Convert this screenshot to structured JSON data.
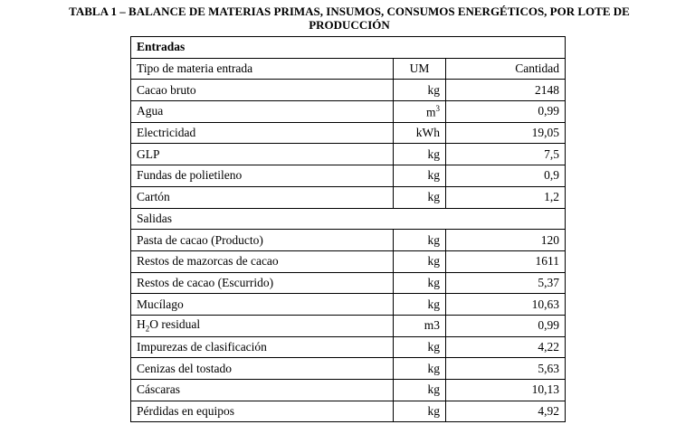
{
  "title": {
    "line1": "TABLA 1 – BALANCE DE MATERIAS PRIMAS, INSUMOS, CONSUMOS ENERGÉTICOS, POR LOTE DE",
    "line2": "PRODUCCIÓN"
  },
  "table": {
    "entradas_label": "Entradas",
    "header": {
      "name": "Tipo de materia entrada",
      "um": "UM",
      "qty": "Cantidad"
    },
    "entradas": [
      {
        "name": "Cacao bruto",
        "um": "kg",
        "qty": "2148"
      },
      {
        "name": "Agua",
        "um_base": "m",
        "um_sup": "3",
        "qty": "0,99"
      },
      {
        "name": "Electricidad",
        "um": "kWh",
        "qty": "19,05"
      },
      {
        "name": "GLP",
        "um": "kg",
        "qty": "7,5"
      },
      {
        "name": "Fundas de polietileno",
        "um": "kg",
        "qty": "0,9"
      },
      {
        "name": "Cartón",
        "um": "kg",
        "qty": "1,2"
      }
    ],
    "salidas_label": "Salidas",
    "salidas": [
      {
        "name": "Pasta de cacao (Producto)",
        "um": "kg",
        "qty": "120"
      },
      {
        "name": "Restos de mazorcas de cacao",
        "um": "kg",
        "qty": "1611"
      },
      {
        "name": "Restos de cacao (Escurrido)",
        "um": "kg",
        "qty": "5,37"
      },
      {
        "name": "Mucílago",
        "um": "kg",
        "qty": "10,63"
      },
      {
        "name_pre": "H",
        "name_sub": "2",
        "name_post": "O residual",
        "um": "m3",
        "qty": "0,99"
      },
      {
        "name": "Impurezas de clasificación",
        "um": "kg",
        "qty": "4,22"
      },
      {
        "name": "Cenizas del tostado",
        "um": "kg",
        "qty": "5,63"
      },
      {
        "name": "Cáscaras",
        "um": "kg",
        "qty": "10,13"
      },
      {
        "name": "Pérdidas en equipos",
        "um": "kg",
        "qty": "4,92"
      }
    ]
  }
}
